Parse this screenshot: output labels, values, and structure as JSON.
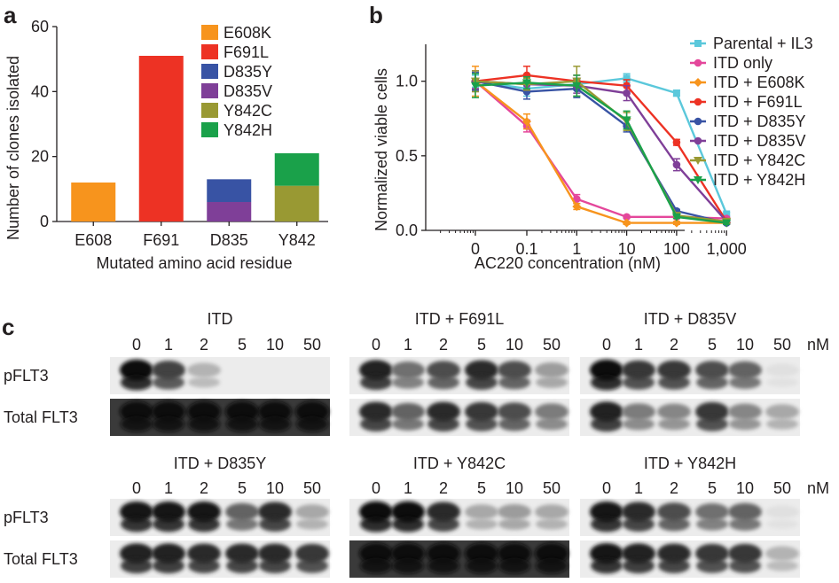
{
  "panel_letters": [
    "a",
    "b",
    "c"
  ],
  "chart_data": [
    {
      "type": "bar",
      "stacked": true,
      "panel": "a",
      "categories": [
        "E608",
        "F691",
        "D835",
        "Y842"
      ],
      "series": [
        {
          "name": "E608K",
          "color": "#f7941d",
          "values": [
            12,
            0,
            0,
            0
          ]
        },
        {
          "name": "F691L",
          "color": "#ed3224",
          "values": [
            0,
            51,
            0,
            0
          ]
        },
        {
          "name": "D835Y",
          "color": "#3853a4",
          "values": [
            0,
            0,
            7,
            0
          ]
        },
        {
          "name": "D835V",
          "color": "#7f3f98",
          "values": [
            0,
            0,
            6,
            0
          ]
        },
        {
          "name": "Y842C",
          "color": "#999933",
          "values": [
            0,
            0,
            0,
            11
          ]
        },
        {
          "name": "Y842H",
          "color": "#1aa14a",
          "values": [
            0,
            0,
            0,
            10
          ]
        }
      ],
      "stack_order": [
        "E608K",
        "F691L",
        "D835V",
        "D835Y",
        "Y842C",
        "Y842H"
      ],
      "xlabel": "Mutated amino acid residue",
      "ylabel": "Number of clones isolated",
      "ylim": [
        0,
        60
      ],
      "yticks": [
        0,
        20,
        40,
        60
      ],
      "legend": "top-right"
    },
    {
      "type": "line",
      "panel": "b",
      "x": [
        0,
        0.1,
        1,
        10,
        100,
        1000
      ],
      "xtick_labels": [
        "0",
        "0.1",
        "1",
        "10",
        "100",
        "1,000"
      ],
      "xscale": "log",
      "xlabel": "AC220 concentration (nM)",
      "ylabel": "Normalized viable cells",
      "ylim": [
        0,
        1.2
      ],
      "yticks": [
        0.0,
        0.5,
        1.0
      ],
      "ytick_labels": [
        "0.0",
        "0.5",
        "1.0"
      ],
      "legend": "right",
      "series": [
        {
          "name": "Parental + IL3",
          "color": "#5bc8db",
          "marker": "square",
          "values": [
            1.0,
            0.95,
            0.98,
            1.02,
            0.92,
            0.11
          ],
          "errors": [
            0.04,
            0.05,
            0.04,
            0.03,
            0.02,
            0.01
          ]
        },
        {
          "name": "ITD only",
          "color": "#e4479b",
          "marker": "circle",
          "values": [
            1.0,
            0.7,
            0.21,
            0.09,
            0.09,
            0.08
          ],
          "errors": [
            0.07,
            0.04,
            0.03,
            0.01,
            0.01,
            0.01
          ]
        },
        {
          "name": "ITD + E608K",
          "color": "#f7941d",
          "marker": "diamond",
          "values": [
            1.0,
            0.73,
            0.16,
            0.05,
            0.05,
            0.05
          ],
          "errors": [
            0.1,
            0.05,
            0.02,
            0.01,
            0.01,
            0.01
          ]
        },
        {
          "name": "ITD + F691L",
          "color": "#ed3224",
          "marker": "circle",
          "values": [
            1.0,
            1.04,
            1.0,
            0.97,
            0.59,
            0.06
          ],
          "errors": [
            0.05,
            0.06,
            0.04,
            0.04,
            0.02,
            0.01
          ]
        },
        {
          "name": "ITD + D835Y",
          "color": "#3853a4",
          "marker": "circle",
          "values": [
            1.0,
            0.93,
            0.95,
            0.7,
            0.13,
            0.05
          ],
          "errors": [
            0.06,
            0.05,
            0.06,
            0.04,
            0.01,
            0.01
          ]
        },
        {
          "name": "ITD + D835V",
          "color": "#7f3f98",
          "marker": "circle",
          "values": [
            1.0,
            0.98,
            0.97,
            0.92,
            0.44,
            0.06
          ],
          "errors": [
            0.05,
            0.04,
            0.05,
            0.05,
            0.04,
            0.01
          ]
        },
        {
          "name": "ITD + Y842C",
          "color": "#999933",
          "marker": "triangle-down",
          "values": [
            1.0,
            0.98,
            1.0,
            0.73,
            0.1,
            0.06
          ],
          "errors": [
            0.07,
            0.04,
            0.1,
            0.06,
            0.01,
            0.01
          ]
        },
        {
          "name": "ITD + Y842H",
          "color": "#1aa14a",
          "marker": "triangle-down",
          "values": [
            0.97,
            0.99,
            0.97,
            0.74,
            0.09,
            0.05
          ],
          "errors": [
            0.08,
            0.04,
            0.07,
            0.06,
            0.01,
            0.01
          ]
        }
      ]
    }
  ],
  "blots": {
    "unit": "nM",
    "row_labels": [
      "pFLT3",
      "Total FLT3"
    ],
    "panels": [
      {
        "title": "ITD",
        "doses": [
          "0",
          "1",
          "2",
          "5",
          "10",
          "50"
        ],
        "p_intensity": [
          1.0,
          0.75,
          0.25,
          0.0,
          0.0,
          0.0
        ],
        "t_intensity": [
          1.0,
          1.0,
          1.0,
          1.0,
          1.0,
          1.0
        ]
      },
      {
        "title": "ITD + F691L",
        "doses": [
          "0",
          "1",
          "2",
          "5",
          "10",
          "50"
        ],
        "p_intensity": [
          0.9,
          0.55,
          0.7,
          0.85,
          0.7,
          0.35
        ],
        "t_intensity": [
          0.85,
          0.6,
          0.85,
          0.8,
          0.7,
          0.5
        ]
      },
      {
        "title": "ITD + D835V",
        "doses": [
          "0",
          "1",
          "2",
          "5",
          "10",
          "50"
        ],
        "p_intensity": [
          1.0,
          0.8,
          0.8,
          0.7,
          0.6,
          0.05
        ],
        "t_intensity": [
          0.9,
          0.5,
          0.45,
          0.8,
          0.45,
          0.3
        ]
      },
      {
        "title": "ITD + D835Y",
        "doses": [
          "0",
          "1",
          "2",
          "5",
          "10",
          "50"
        ],
        "p_intensity": [
          0.95,
          0.95,
          0.95,
          0.6,
          0.85,
          0.3
        ],
        "t_intensity": [
          0.9,
          0.9,
          0.85,
          0.85,
          0.85,
          0.8
        ]
      },
      {
        "title": "ITD + Y842C",
        "doses": [
          "0",
          "1",
          "2",
          "5",
          "10",
          "50"
        ],
        "p_intensity": [
          1.0,
          1.0,
          0.85,
          0.3,
          0.35,
          0.3
        ],
        "t_intensity": [
          1.0,
          1.0,
          1.0,
          1.0,
          1.0,
          1.0
        ]
      },
      {
        "title": "ITD + Y842H",
        "doses": [
          "0",
          "1",
          "2",
          "5",
          "10",
          "50"
        ],
        "p_intensity": [
          0.95,
          0.85,
          0.7,
          0.55,
          0.6,
          0.05
        ],
        "t_intensity": [
          0.95,
          0.9,
          0.85,
          0.8,
          0.8,
          0.25
        ]
      }
    ]
  }
}
